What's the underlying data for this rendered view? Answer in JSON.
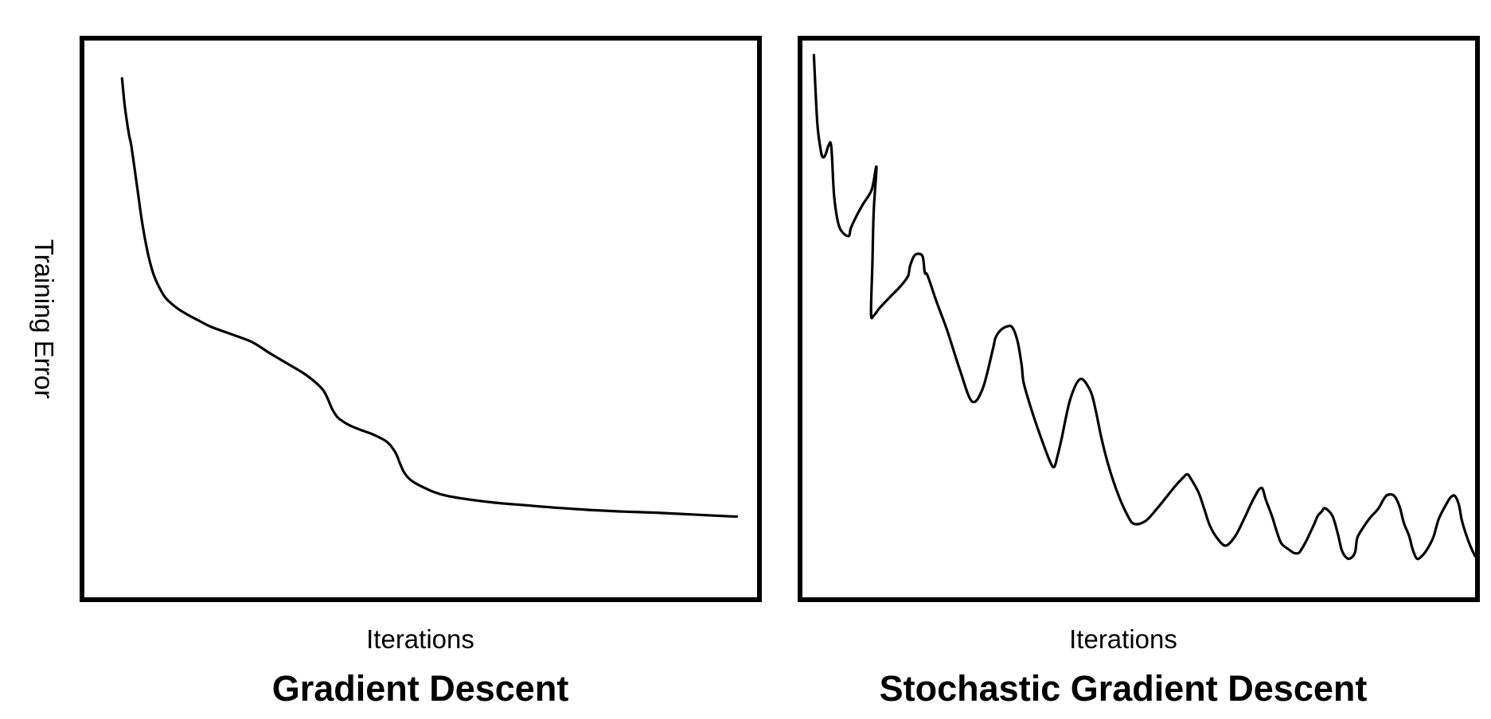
{
  "chart_data": [
    {
      "type": "line",
      "title": "Gradient Descent",
      "xlabel": "Iterations",
      "ylabel": "Training Error",
      "xlim": [
        0,
        100
      ],
      "ylim": [
        0,
        100
      ],
      "grid": false,
      "legend": "none",
      "series": [
        {
          "x": [
            5.6,
            6.0,
            6.6,
            7.0,
            7.8,
            8.6,
            9.4,
            10.2,
            11.0,
            12.0,
            13.5,
            15.0,
            17.0,
            19.0,
            22.0,
            25.0,
            27.5,
            30.0,
            33.0,
            35.5,
            36.8,
            37.6,
            38.2,
            38.8,
            39.6,
            41.0,
            43.0,
            45.0,
            46.2,
            46.9,
            47.5,
            48.3,
            49.2,
            50.5,
            52.0,
            54.0,
            57.0,
            61.0,
            65.0,
            70.0,
            75.0,
            80.0,
            85.0,
            90.0,
            95.0,
            97.0
          ],
          "y": [
            93.2,
            88.3,
            83.3,
            80.9,
            74.1,
            67.2,
            62.0,
            58.3,
            56.0,
            53.9,
            52.2,
            51.0,
            49.7,
            48.5,
            47.2,
            45.8,
            43.9,
            42.1,
            39.9,
            37.2,
            33.9,
            32.4,
            31.8,
            31.3,
            30.8,
            30.1,
            29.2,
            27.9,
            26.1,
            24.1,
            22.5,
            21.3,
            20.5,
            19.7,
            18.9,
            18.2,
            17.6,
            17.0,
            16.6,
            16.1,
            15.7,
            15.4,
            15.2,
            14.9,
            14.6,
            14.5
          ]
        }
      ]
    },
    {
      "type": "line",
      "title": "Stochastic Gradient Descent",
      "xlabel": "Iterations",
      "ylabel": "",
      "xlim": [
        0,
        100
      ],
      "ylim": [
        0,
        100
      ],
      "grid": false,
      "legend": "none",
      "series": [
        {
          "x": [
            1.7,
            2.2,
            2.7,
            3.0,
            3.4,
            3.9,
            4.3,
            4.7,
            5.3,
            6.0,
            6.9,
            7.2,
            8.0,
            9.0,
            10.3,
            11.0,
            10.6,
            10.4,
            10.2,
            10.6,
            11.5,
            13.0,
            14.6,
            15.7,
            16.0,
            16.6,
            17.3,
            17.9,
            18.2,
            18.6,
            20.0,
            21.5,
            23.4,
            25.2,
            26.8,
            28.3,
            28.7,
            29.4,
            30.3,
            31.2,
            32.0,
            32.6,
            32.9,
            34.0,
            35.2,
            36.7,
            37.4,
            37.9,
            38.5,
            39.8,
            41.3,
            42.8,
            43.6,
            44.4,
            45.4,
            46.8,
            48.3,
            49.3,
            51.0,
            52.9,
            55.3,
            56.6,
            57.2,
            57.7,
            58.9,
            59.7,
            60.6,
            61.8,
            63.0,
            64.4,
            65.7,
            66.7,
            67.4,
            67.9,
            68.4,
            68.9,
            69.8,
            70.5,
            71.2,
            72.3,
            73.0,
            73.4,
            73.9,
            74.8,
            75.6,
            76.1,
            76.6,
            77.2,
            77.7,
            78.8,
            79.6,
            80.2,
            81.0,
            81.7,
            82.2,
            82.5,
            83.4,
            84.4,
            85.6,
            86.4,
            87.0,
            88.0,
            88.8,
            89.4,
            90.2,
            90.7,
            91.3,
            91.9,
            92.8,
            93.8,
            94.6,
            95.8,
            96.4,
            97.0,
            97.6,
            98.0,
            98.6,
            99.3,
            100.0
          ],
          "y": [
            97.4,
            85.4,
            80.5,
            79.1,
            79.4,
            81.2,
            80.9,
            72.3,
            67.3,
            65.5,
            64.9,
            66.3,
            68.4,
            70.6,
            73.2,
            77.3,
            69.4,
            59.8,
            51.0,
            50.6,
            52.0,
            53.9,
            55.9,
            57.7,
            59.5,
            61.3,
            61.7,
            61.1,
            58.3,
            57.8,
            52.9,
            48.0,
            40.9,
            35.2,
            37.5,
            44.5,
            46.6,
            47.9,
            48.6,
            48.5,
            45.9,
            41.6,
            38.5,
            33.9,
            29.6,
            24.7,
            23.4,
            25.3,
            28.3,
            35.5,
            39.2,
            37.1,
            33.6,
            28.9,
            24.1,
            18.9,
            14.8,
            13.2,
            13.7,
            16.2,
            19.8,
            21.5,
            22.1,
            21.4,
            18.8,
            16.0,
            12.8,
            10.4,
            9.3,
            11.1,
            14.2,
            16.8,
            18.4,
            19.4,
            19.5,
            17.5,
            14.6,
            11.9,
            9.7,
            8.6,
            8.0,
            7.9,
            8.1,
            9.9,
            11.9,
            13.2,
            14.6,
            15.4,
            16.0,
            14.6,
            11.4,
            8.4,
            7.0,
            7.2,
            8.3,
            10.7,
            12.6,
            14.3,
            15.9,
            17.6,
            18.4,
            18.2,
            16.2,
            13.4,
            11.0,
            8.7,
            7.0,
            7.2,
            8.5,
            10.8,
            14.1,
            16.9,
            18.0,
            18.2,
            16.6,
            14.0,
            11.5,
            9.2,
            7.4
          ]
        }
      ]
    }
  ]
}
